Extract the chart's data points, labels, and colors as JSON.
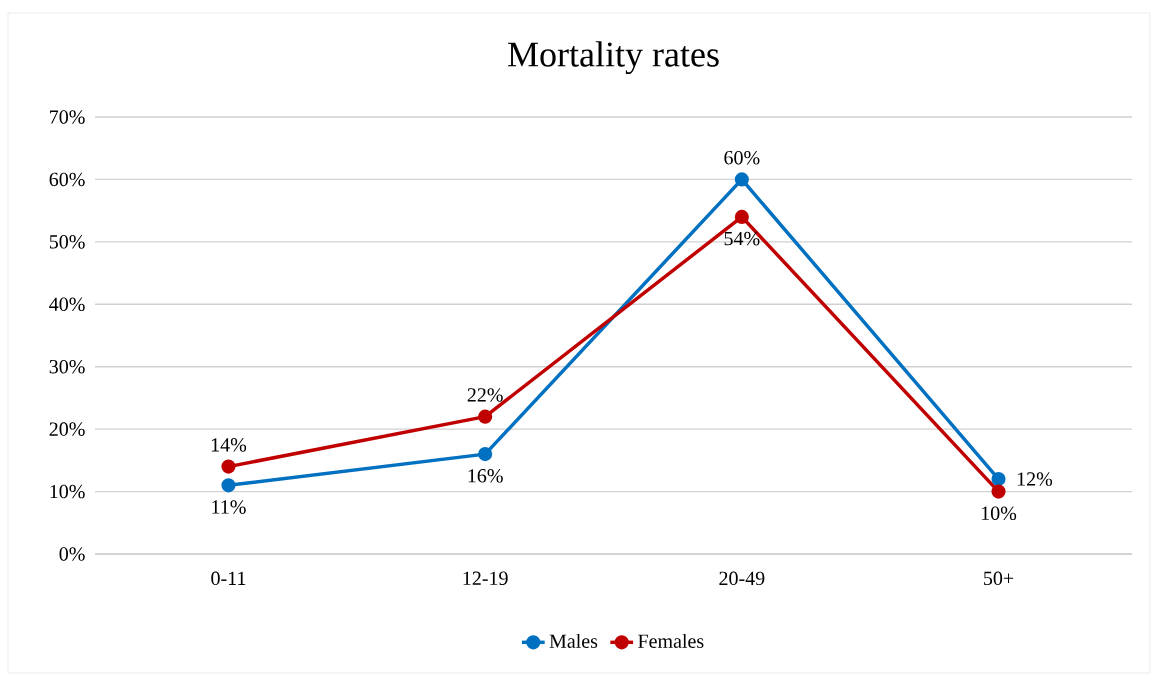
{
  "chart_data": {
    "type": "line",
    "title": "Mortality rates",
    "categories": [
      "0-11",
      "12-19",
      "20-49",
      "50+"
    ],
    "series": [
      {
        "name": "Males",
        "color": "#0070c0",
        "values": [
          11,
          16,
          60,
          12
        ],
        "value_labels": [
          "11%",
          "16%",
          "60%",
          "12%"
        ]
      },
      {
        "name": "Females",
        "color": "#c00000",
        "values": [
          14,
          22,
          54,
          10
        ],
        "value_labels": [
          "14%",
          "22%",
          "54%",
          "10%"
        ]
      }
    ],
    "ylim": [
      0,
      70
    ],
    "yticks": [
      {
        "value": 0,
        "label": "0%"
      },
      {
        "value": 10,
        "label": "10%"
      },
      {
        "value": 20,
        "label": "20%"
      },
      {
        "value": 30,
        "label": "30%"
      },
      {
        "value": 40,
        "label": "40%"
      },
      {
        "value": 50,
        "label": "50%"
      },
      {
        "value": 60,
        "label": "60%"
      },
      {
        "value": 70,
        "label": "70%"
      }
    ],
    "grid": "y",
    "legend": "bottom",
    "marker": "circle",
    "line_style": "solid"
  }
}
